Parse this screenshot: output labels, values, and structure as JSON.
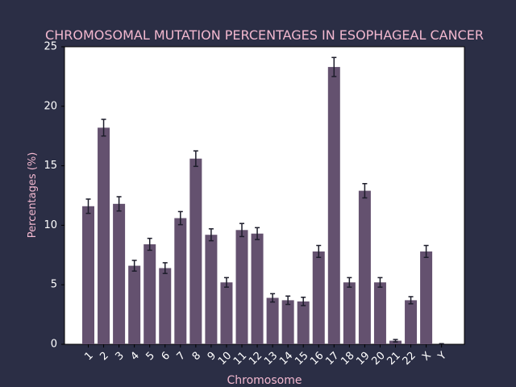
{
  "chart_data": {
    "type": "bar",
    "title": "CHROMOSOMAL MUTATION PERCENTAGES IN ESOPHAGEAL CANCER",
    "xlabel": "Chromosome",
    "ylabel": "Percentages (%)",
    "ylim": [
      0,
      25
    ],
    "yticks": [
      0,
      5,
      10,
      15,
      20,
      25
    ],
    "grid": false,
    "categories": [
      "1",
      "2",
      "3",
      "4",
      "5",
      "6",
      "7",
      "8",
      "9",
      "10",
      "11",
      "12",
      "13",
      "14",
      "15",
      "16",
      "17",
      "18",
      "19",
      "20",
      "21",
      "22",
      "X",
      "Y"
    ],
    "values": [
      11.6,
      18.2,
      11.8,
      6.6,
      8.4,
      6.4,
      10.6,
      15.6,
      9.2,
      5.2,
      9.6,
      9.3,
      3.9,
      3.7,
      3.6,
      7.8,
      23.3,
      5.2,
      12.9,
      5.2,
      0.3,
      3.7,
      7.8,
      0.0
    ],
    "errors": [
      0.6,
      0.7,
      0.6,
      0.45,
      0.5,
      0.45,
      0.55,
      0.65,
      0.5,
      0.4,
      0.55,
      0.5,
      0.35,
      0.35,
      0.35,
      0.5,
      0.8,
      0.4,
      0.6,
      0.4,
      0.1,
      0.3,
      0.5,
      0.05
    ],
    "colors": {
      "background": "#2b2e45",
      "plot_area": "#ffffff",
      "bar": "#64516f",
      "error_bar": "#1c1c2a",
      "text": "#f2b8cf",
      "tick_label": "#ffffff"
    }
  }
}
